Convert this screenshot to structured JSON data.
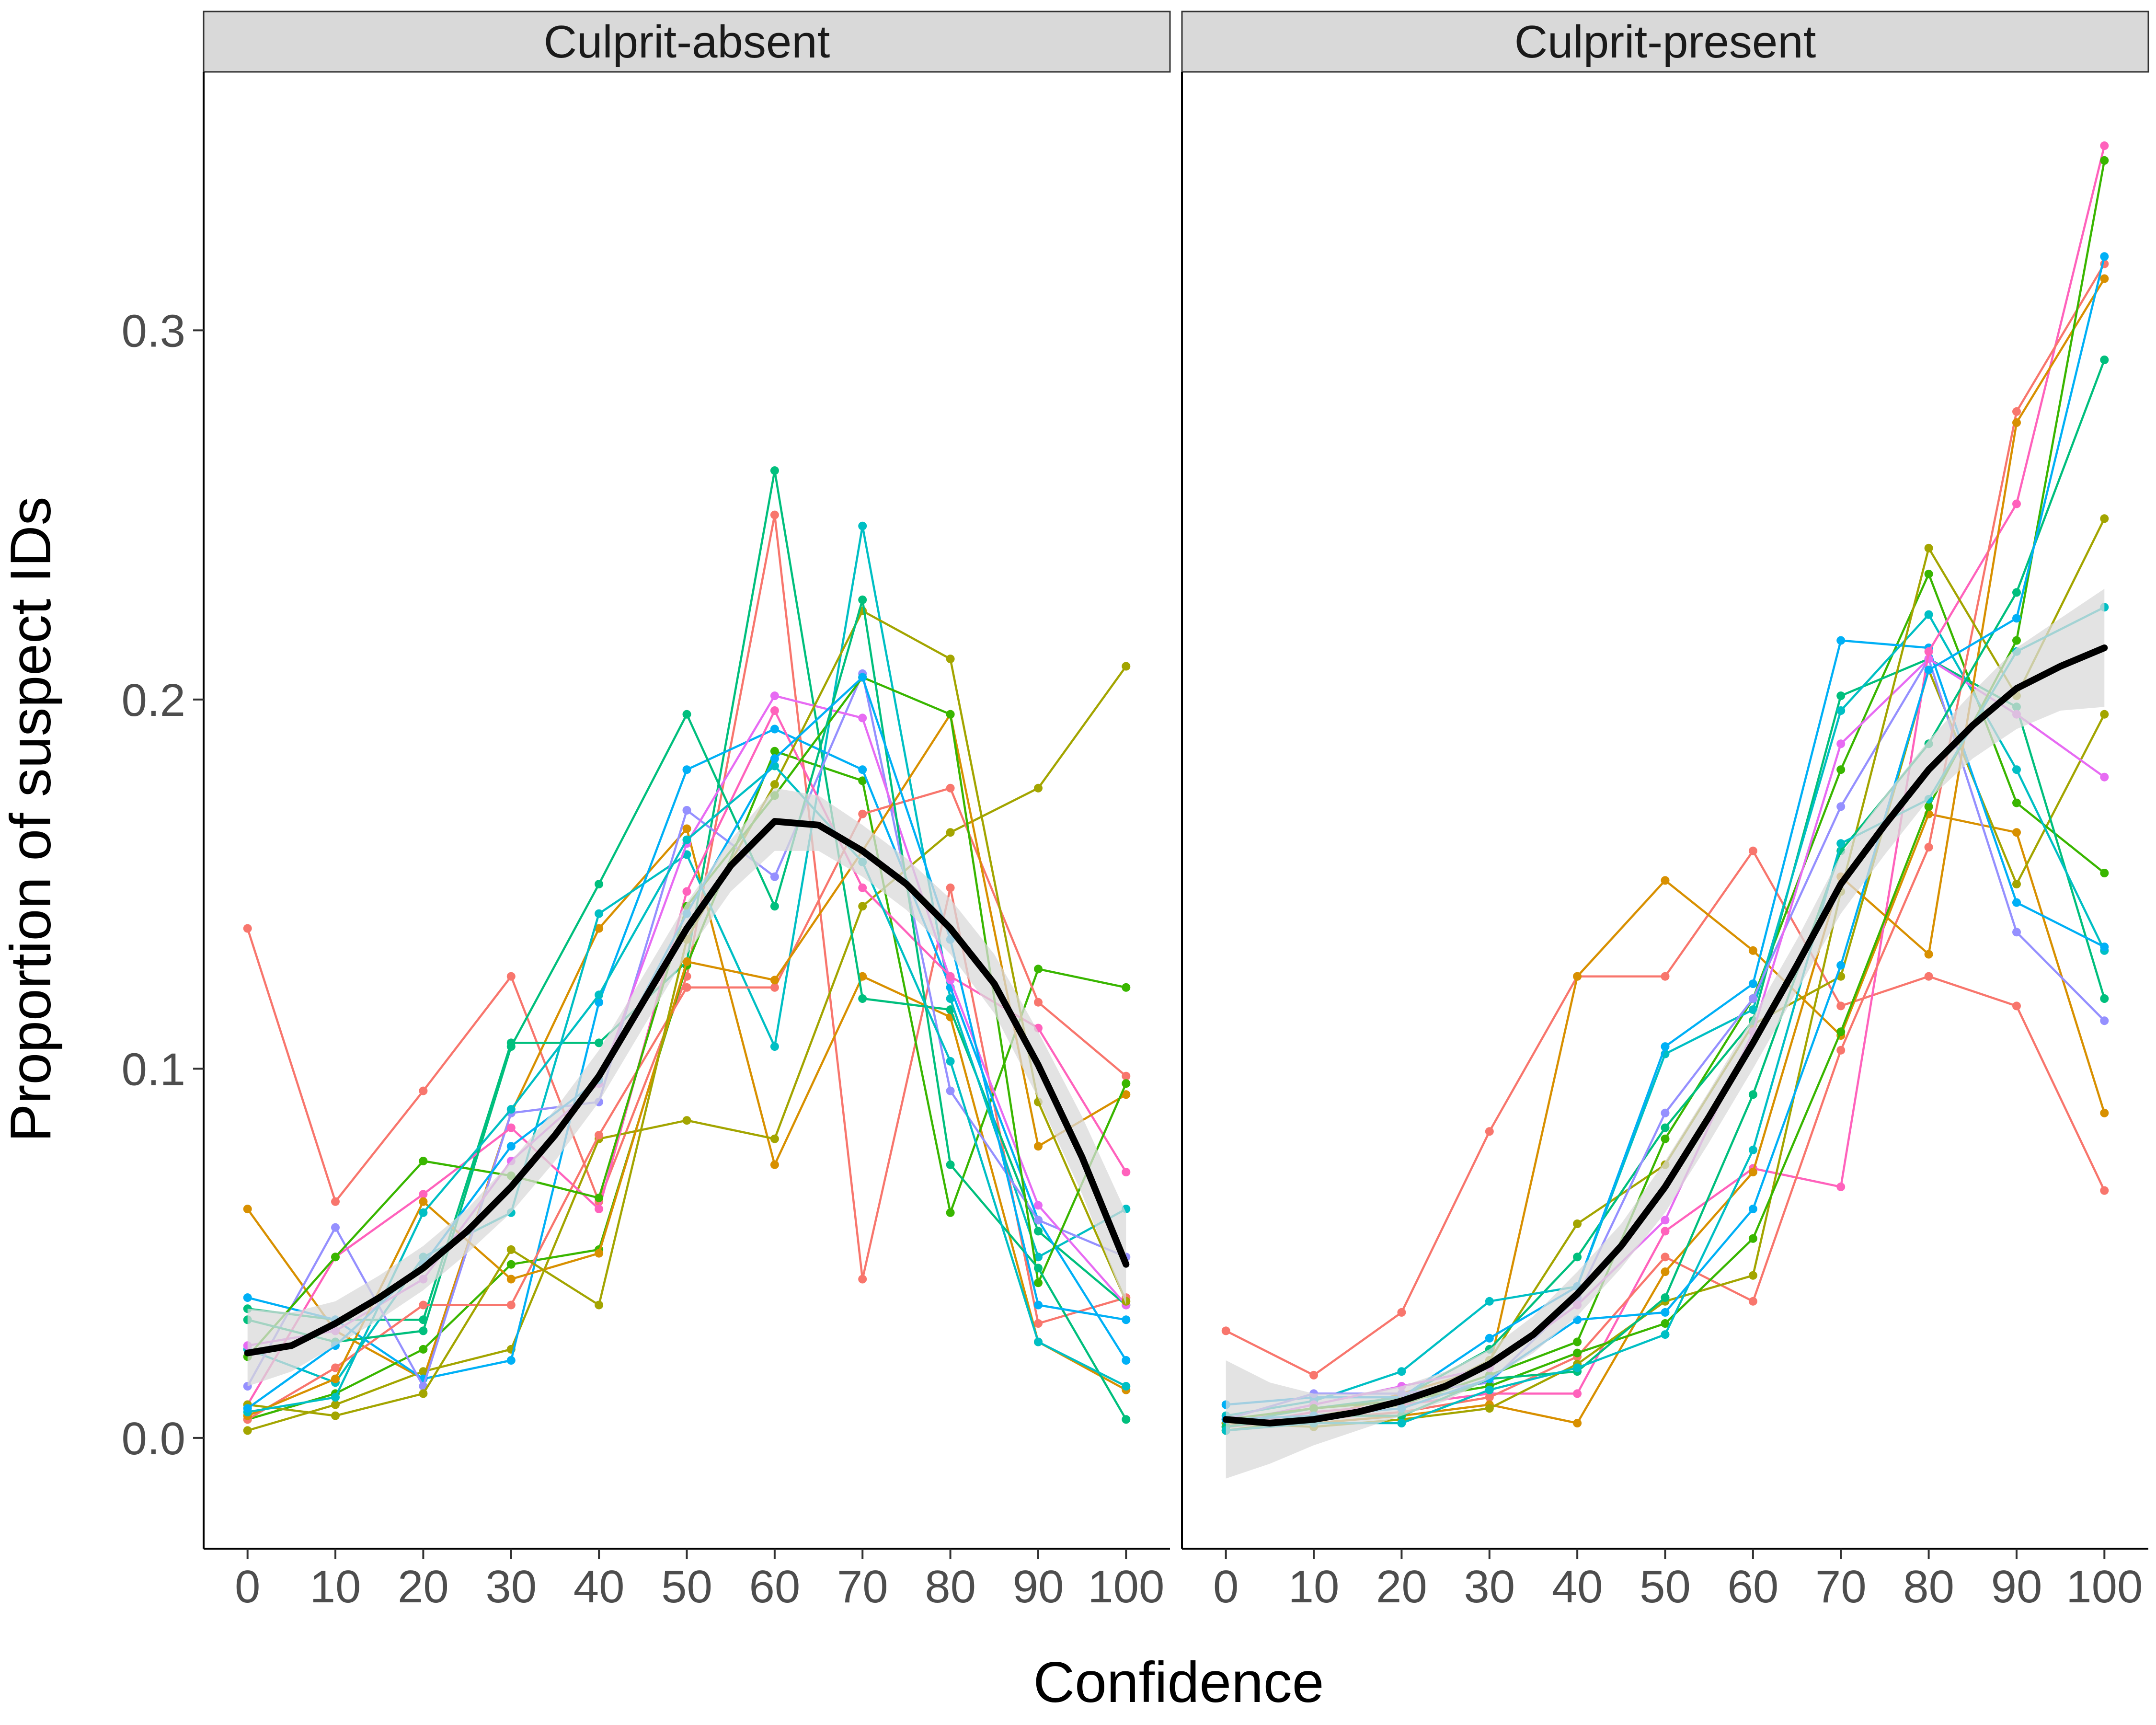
{
  "chart_data": {
    "type": "line",
    "xlabel": "Confidence",
    "ylabel": "Proportion of suspect IDs",
    "x": [
      0,
      10,
      20,
      30,
      40,
      50,
      60,
      70,
      80,
      90,
      100
    ],
    "xlim": [
      -5,
      105
    ],
    "ylim": [
      -0.03,
      0.37
    ],
    "yticks": [
      0.0,
      0.1,
      0.2,
      0.3
    ],
    "ytick_labels": [
      "0.0",
      "0.1",
      "0.2",
      "0.3"
    ],
    "grid": false,
    "legend": "none",
    "series_colors": [
      "#F8766D",
      "#D89000",
      "#A3A500",
      "#39B600",
      "#00BF7D",
      "#00BFC4",
      "#00B0F6",
      "#9590FF",
      "#E76BF3",
      "#FF62BC"
    ],
    "trend_color": "#000000",
    "band_color": "#d9d9d9",
    "panels": [
      {
        "label": "Culprit-absent",
        "trend": {
          "x": [
            0,
            5,
            10,
            15,
            20,
            25,
            30,
            35,
            40,
            45,
            50,
            55,
            60,
            65,
            70,
            75,
            80,
            85,
            90,
            95,
            100
          ],
          "y": [
            0.023,
            0.025,
            0.031,
            0.038,
            0.046,
            0.056,
            0.068,
            0.082,
            0.098,
            0.118,
            0.138,
            0.155,
            0.167,
            0.166,
            0.159,
            0.15,
            0.138,
            0.123,
            0.101,
            0.076,
            0.047
          ],
          "lower": [
            0.014,
            0.018,
            0.025,
            0.032,
            0.04,
            0.05,
            0.061,
            0.075,
            0.091,
            0.111,
            0.131,
            0.148,
            0.159,
            0.159,
            0.152,
            0.143,
            0.131,
            0.115,
            0.092,
            0.066,
            0.036
          ],
          "upper": [
            0.035,
            0.034,
            0.037,
            0.044,
            0.052,
            0.062,
            0.075,
            0.089,
            0.105,
            0.125,
            0.145,
            0.162,
            0.176,
            0.174,
            0.166,
            0.157,
            0.146,
            0.131,
            0.11,
            0.087,
            0.061
          ]
        },
        "series": [
          {
            "values": [
              0.138,
              0.064,
              0.094,
              0.125,
              0.064,
              0.125,
              0.25,
              0.043,
              0.149,
              0.031,
              0.038
            ]
          },
          {
            "values": [
              0.062,
              0.029,
              0.016,
              0.088,
              0.138,
              0.165,
              0.074,
              0.125,
              0.114,
              0.026,
              0.013
            ]
          },
          {
            "values": [
              0.002,
              0.009,
              0.018,
              0.024,
              0.081,
              0.086,
              0.081,
              0.144,
              0.164,
              0.176,
              0.209
            ]
          },
          {
            "values": [
              0.005,
              0.012,
              0.024,
              0.047,
              0.051,
              0.128,
              0.186,
              0.178,
              0.061,
              0.127,
              0.122
            ]
          },
          {
            "values": [
              0.035,
              0.032,
              0.032,
              0.107,
              0.107,
              0.129,
              0.262,
              0.119,
              0.116,
              0.056,
              0.036
            ]
          },
          {
            "values": [
              0.024,
              0.015,
              0.049,
              0.061,
              0.142,
              0.158,
              0.106,
              0.247,
              0.119,
              0.049,
              0.062
            ]
          },
          {
            "values": [
              0.038,
              0.032,
              0.016,
              0.021,
              0.118,
              0.181,
              0.192,
              0.181,
              0.122,
              0.059,
              0.021
            ]
          },
          {
            "values": [
              0.014,
              0.057,
              0.014,
              0.088,
              0.091,
              0.17,
              0.152,
              0.207,
              0.094,
              0.059,
              0.049
            ]
          },
          {
            "values": [
              0.025,
              0.029,
              0.043,
              0.075,
              0.096,
              0.161,
              0.201,
              0.195,
              0.124,
              0.063,
              0.036
            ]
          },
          {
            "values": [
              0.009,
              0.049,
              0.066,
              0.084,
              0.062,
              0.148,
              0.197,
              0.149,
              0.125,
              0.111,
              0.072
            ]
          },
          {
            "values": [
              0.005,
              0.019,
              0.036,
              0.036,
              0.082,
              0.122,
              0.122,
              0.169,
              0.176,
              0.118,
              0.098
            ]
          },
          {
            "values": [
              0.006,
              0.016,
              0.064,
              0.043,
              0.05,
              0.129,
              0.124,
              0.159,
              0.196,
              0.079,
              0.093
            ]
          },
          {
            "values": [
              0.009,
              0.006,
              0.012,
              0.051,
              0.036,
              0.135,
              0.177,
              0.224,
              0.211,
              0.091,
              0.037
            ]
          },
          {
            "values": [
              0.022,
              0.049,
              0.075,
              0.071,
              0.065,
              0.144,
              0.174,
              0.206,
              0.196,
              0.042,
              0.096
            ]
          },
          {
            "values": [
              0.032,
              0.026,
              0.029,
              0.106,
              0.15,
              0.196,
              0.144,
              0.227,
              0.074,
              0.046,
              0.005
            ]
          },
          {
            "values": [
              0.007,
              0.011,
              0.061,
              0.089,
              0.12,
              0.162,
              0.182,
              0.156,
              0.102,
              0.026,
              0.014
            ]
          },
          {
            "values": [
              0.008,
              0.025,
              0.047,
              0.079,
              0.097,
              0.142,
              0.184,
              0.206,
              0.135,
              0.036,
              0.032
            ]
          }
        ]
      },
      {
        "label": "Culprit-present",
        "trend": {
          "x": [
            0,
            5,
            10,
            15,
            20,
            25,
            30,
            35,
            40,
            45,
            50,
            55,
            60,
            65,
            70,
            75,
            80,
            85,
            90,
            95,
            100
          ],
          "y": [
            0.005,
            0.004,
            0.005,
            0.007,
            0.01,
            0.014,
            0.02,
            0.028,
            0.039,
            0.052,
            0.068,
            0.087,
            0.107,
            0.128,
            0.15,
            0.166,
            0.181,
            0.193,
            0.203,
            0.209,
            0.214
          ],
          "lower": [
            -0.011,
            -0.007,
            -0.002,
            0.002,
            0.006,
            0.01,
            0.016,
            0.023,
            0.033,
            0.046,
            0.061,
            0.08,
            0.1,
            0.121,
            0.142,
            0.158,
            0.173,
            0.184,
            0.192,
            0.197,
            0.198
          ],
          "upper": [
            0.021,
            0.015,
            0.012,
            0.012,
            0.014,
            0.018,
            0.024,
            0.033,
            0.045,
            0.058,
            0.075,
            0.094,
            0.114,
            0.135,
            0.158,
            0.174,
            0.189,
            0.202,
            0.214,
            0.222,
            0.23
          ]
        },
        "series": [
          {
            "values": [
              0.029,
              0.017,
              0.034,
              0.083,
              0.125,
              0.125,
              0.159,
              0.117,
              0.125,
              0.117,
              0.067
            ]
          },
          {
            "values": [
              0.004,
              0.005,
              0.012,
              0.019,
              0.125,
              0.151,
              0.132,
              0.109,
              0.169,
              0.164,
              0.088
            ]
          },
          {
            "values": [
              0.003,
              0.006,
              0.009,
              0.021,
              0.058,
              0.074,
              0.112,
              0.125,
              0.208,
              0.15,
              0.196
            ]
          },
          {
            "values": [
              0.002,
              0.005,
              0.009,
              0.017,
              0.026,
              0.081,
              0.119,
              0.181,
              0.234,
              0.172,
              0.153
            ]
          },
          {
            "values": [
              0.004,
              0.008,
              0.011,
              0.024,
              0.049,
              0.084,
              0.113,
              0.201,
              0.211,
              0.198,
              0.119
            ]
          },
          {
            "values": [
              0.006,
              0.01,
              0.018,
              0.037,
              0.041,
              0.104,
              0.116,
              0.197,
              0.223,
              0.181,
              0.132
            ]
          },
          {
            "values": [
              0.009,
              0.011,
              0.011,
              0.027,
              0.041,
              0.106,
              0.123,
              0.216,
              0.214,
              0.145,
              0.133
            ]
          },
          {
            "values": [
              0.005,
              0.012,
              0.012,
              0.015,
              0.038,
              0.088,
              0.119,
              0.171,
              0.211,
              0.137,
              0.113
            ]
          },
          {
            "values": [
              0.004,
              0.009,
              0.014,
              0.019,
              0.036,
              0.059,
              0.11,
              0.188,
              0.211,
              0.196,
              0.179
            ]
          },
          {
            "values": [
              0.003,
              0.007,
              0.009,
              0.012,
              0.012,
              0.056,
              0.073,
              0.068,
              0.213,
              0.253,
              0.35
            ]
          },
          {
            "values": [
              0.003,
              0.005,
              0.007,
              0.011,
              0.022,
              0.049,
              0.037,
              0.105,
              0.16,
              0.278,
              0.318
            ]
          },
          {
            "values": [
              0.002,
              0.004,
              0.006,
              0.009,
              0.004,
              0.045,
              0.072,
              0.152,
              0.131,
              0.275,
              0.314
            ]
          },
          {
            "values": [
              0.004,
              0.003,
              0.005,
              0.008,
              0.02,
              0.037,
              0.044,
              0.148,
              0.241,
              0.201,
              0.249
            ]
          },
          {
            "values": [
              0.005,
              0.008,
              0.01,
              0.014,
              0.023,
              0.031,
              0.054,
              0.11,
              0.171,
              0.216,
              0.346
            ]
          },
          {
            "values": [
              0.003,
              0.006,
              0.006,
              0.016,
              0.018,
              0.038,
              0.093,
              0.159,
              0.188,
              0.229,
              0.292
            ]
          },
          {
            "values": [
              0.002,
              0.004,
              0.004,
              0.013,
              0.019,
              0.028,
              0.078,
              0.161,
              0.173,
              0.213,
              0.225
            ]
          },
          {
            "values": [
              0.005,
              0.006,
              0.008,
              0.016,
              0.032,
              0.034,
              0.062,
              0.128,
              0.208,
              0.222,
              0.32
            ]
          }
        ]
      }
    ]
  }
}
